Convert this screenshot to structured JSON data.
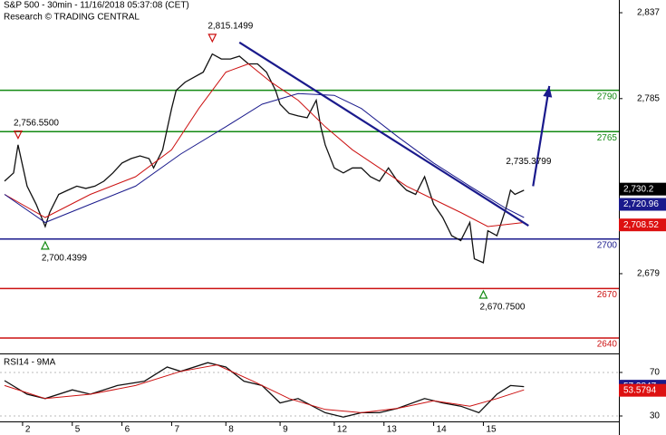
{
  "chart_data": [
    {
      "type": "line",
      "title": "S&P 500 - 30min - 11/16/2018 05:37:08 (CET)",
      "subtitle": "Research © TRADING CENTRAL",
      "xlim": [
        0,
        137
      ],
      "ylim": [
        2630.7,
        2844.7
      ],
      "yticks": [
        {
          "value": 2837,
          "label": "2,837"
        },
        {
          "value": 2785,
          "label": "2,785"
        },
        {
          "value": 2679,
          "label": "2,679"
        }
      ],
      "series": [
        {
          "color": "#111111",
          "x": [
            1,
            3,
            4,
            6,
            8,
            10,
            11,
            13,
            15,
            17,
            19,
            21,
            23,
            25,
            27,
            29,
            31,
            33,
            34,
            36,
            38,
            39,
            41,
            43,
            45,
            47,
            49,
            51,
            53,
            55,
            57,
            59,
            61,
            62,
            64,
            66,
            68,
            70,
            71,
            72,
            74,
            76,
            78,
            80,
            82,
            84,
            86,
            88,
            90,
            92,
            94,
            96,
            98,
            100,
            102,
            104,
            105,
            107,
            108,
            110,
            112,
            113,
            114,
            116
          ],
          "values": [
            2735,
            2740,
            2757,
            2732,
            2721,
            2707.5,
            2716,
            2727,
            2729.5,
            2732,
            2730.6,
            2732,
            2735,
            2740,
            2746,
            2748.7,
            2750.3,
            2748.7,
            2743,
            2754,
            2779,
            2790,
            2795,
            2798,
            2801,
            2812,
            2809,
            2809,
            2810.7,
            2806,
            2806,
            2801,
            2790,
            2781.6,
            2776,
            2774.5,
            2773.4,
            2784,
            2768,
            2757,
            2743,
            2740,
            2743,
            2743,
            2737.7,
            2735,
            2743,
            2735,
            2729.5,
            2727,
            2737.7,
            2721,
            2713,
            2702,
            2699,
            2710,
            2688,
            2685.6,
            2705,
            2702,
            2718.5,
            2729.5,
            2727,
            2729.5
          ]
        },
        {
          "color": "#cc1111",
          "x": [
            1,
            10,
            20,
            30,
            38,
            44,
            50,
            55,
            60,
            66,
            72,
            78,
            84,
            90,
            96,
            102,
            108,
            116
          ],
          "values": [
            2727,
            2713,
            2727,
            2737.7,
            2754,
            2779,
            2801,
            2806,
            2795,
            2784,
            2768,
            2754,
            2743,
            2732,
            2724,
            2716,
            2707.5,
            2710
          ]
        },
        {
          "color": "#1a1a8c",
          "x": [
            1,
            10,
            20,
            30,
            40,
            50,
            58,
            66,
            74,
            80,
            88,
            96,
            104,
            112,
            116
          ],
          "values": [
            2727,
            2710,
            2721,
            2732,
            2751.4,
            2768,
            2781.6,
            2788,
            2787,
            2779,
            2762,
            2746,
            2732,
            2718.5,
            2713
          ]
        }
      ],
      "levels": [
        {
          "value": 2790,
          "color": "#138a13"
        },
        {
          "value": 2765,
          "color": "#138a13"
        },
        {
          "value": 2700,
          "color": "#1a1a8c"
        },
        {
          "value": 2670,
          "color": "#cc1111"
        },
        {
          "value": 2640,
          "color": "#cc1111"
        }
      ],
      "trendline": {
        "x": [
          53,
          117
        ],
        "y": [
          2819,
          2708
        ],
        "color": "#1a1a8c"
      },
      "arrow": {
        "x": [
          118,
          121.6
        ],
        "y": [
          2732,
          2792.6
        ],
        "color": "#1a1a8c"
      },
      "annotations": [
        {
          "x": 47,
          "y": 2815.1499,
          "label": "2,815.1499",
          "marker": "down"
        },
        {
          "x": 4,
          "y": 2756.55,
          "label": "2,756.5500",
          "marker": "down"
        },
        {
          "x": 10,
          "y": 2700.4399,
          "label": "2,700.4399",
          "marker": "up"
        },
        {
          "x": 107,
          "y": 2670.75,
          "label": "2,670.7500",
          "marker": "up"
        },
        {
          "x": 112,
          "y": 2735.3799,
          "label": "2,735.3799"
        }
      ],
      "last_values": [
        {
          "value": 2730.2,
          "label": "2,730.2",
          "color": "#000000"
        },
        {
          "value": 2720.96,
          "label": "2,720.96",
          "color": "#1a1a8c"
        },
        {
          "value": 2708.52,
          "label": "2,708.52",
          "color": "#dd1111"
        }
      ]
    },
    {
      "type": "line",
      "title": "RSI14 - 9MA",
      "xlim": [
        0,
        137
      ],
      "ylim": [
        25,
        85.8
      ],
      "yticks": [
        70,
        30
      ],
      "xticks": [
        {
          "value": 5,
          "label": "2"
        },
        {
          "value": 16,
          "label": "5"
        },
        {
          "value": 27,
          "label": "6"
        },
        {
          "value": 38,
          "label": "7"
        },
        {
          "value": 50,
          "label": "8"
        },
        {
          "value": 62,
          "label": "9"
        },
        {
          "value": 74,
          "label": "12"
        },
        {
          "value": 85,
          "label": "13"
        },
        {
          "value": 96,
          "label": "14"
        },
        {
          "value": 107,
          "label": "15"
        }
      ],
      "series": [
        {
          "color": "#111111",
          "x": [
            1,
            6,
            10,
            16,
            20,
            26,
            32,
            37,
            40,
            46,
            50,
            54,
            58,
            62,
            66,
            72,
            76,
            80,
            84,
            88,
            94,
            98,
            102,
            106,
            110,
            113,
            116
          ],
          "values": [
            62.5,
            50,
            46,
            54,
            50,
            58,
            62,
            75,
            71,
            79,
            75,
            62,
            58,
            42,
            46,
            33,
            29,
            33,
            33,
            37,
            46,
            42,
            39,
            33,
            50,
            58,
            57
          ]
        },
        {
          "color": "#cc1111",
          "x": [
            1,
            10,
            20,
            30,
            40,
            48,
            56,
            64,
            72,
            80,
            88,
            96,
            104,
            110,
            116
          ],
          "values": [
            58,
            46,
            50,
            58,
            71,
            77,
            62,
            46,
            36,
            33,
            37,
            44,
            39,
            46,
            54
          ]
        }
      ],
      "last_values": [
        {
          "value": 57.3847,
          "color": "#1a1a8c"
        },
        {
          "value": 53.5794,
          "color": "#dd1111"
        }
      ]
    }
  ]
}
